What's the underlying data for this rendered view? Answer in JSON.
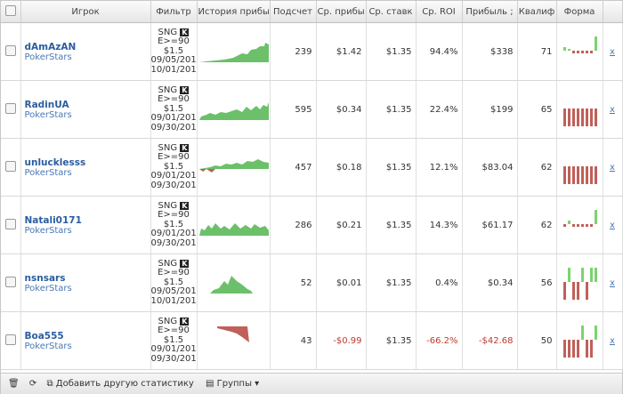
{
  "header": {
    "columns": [
      "Игрок",
      "Фильтр",
      "История прибы",
      "Подсчет",
      "Ср. прибы",
      "Ср. ставк",
      "Ср. ROI",
      "Прибыль ;",
      "Квалиф",
      "Форма"
    ]
  },
  "rows": [
    {
      "player": "dAmAzAN",
      "site": "PokerStars",
      "filter": [
        "SNG",
        "K",
        "E>=90",
        "$1.5",
        "09/05/201",
        "10/01/201"
      ],
      "count": "239",
      "avg_profit": "$1.42",
      "avg_stake": "$1.35",
      "roi": "94.4%",
      "profit": "$338",
      "qual": "71",
      "remove": "x"
    },
    {
      "player": "RadinUA",
      "site": "PokerStars",
      "filter": [
        "SNG",
        "K",
        "E>=90",
        "$1.5",
        "09/01/201",
        "09/30/201"
      ],
      "count": "595",
      "avg_profit": "$0.34",
      "avg_stake": "$1.35",
      "roi": "22.4%",
      "profit": "$199",
      "qual": "65",
      "remove": "x"
    },
    {
      "player": "unlucklesss",
      "site": "PokerStars",
      "filter": [
        "SNG",
        "K",
        "E>=90",
        "$1.5",
        "09/01/201",
        "09/30/201"
      ],
      "count": "457",
      "avg_profit": "$0.18",
      "avg_stake": "$1.35",
      "roi": "12.1%",
      "profit": "$83.04",
      "qual": "62",
      "remove": "x"
    },
    {
      "player": "Natali0171",
      "site": "PokerStars",
      "filter": [
        "SNG",
        "K",
        "E>=90",
        "$1.5",
        "09/01/201",
        "09/30/201"
      ],
      "count": "286",
      "avg_profit": "$0.21",
      "avg_stake": "$1.35",
      "roi": "14.3%",
      "profit": "$61.17",
      "qual": "62",
      "remove": "x"
    },
    {
      "player": "nsnsars",
      "site": "PokerStars",
      "filter": [
        "SNG",
        "K",
        "E>=90",
        "$1.5",
        "09/05/201",
        "10/01/201"
      ],
      "count": "52",
      "avg_profit": "$0.01",
      "avg_stake": "$1.35",
      "roi": "0.4%",
      "profit": "$0.34",
      "qual": "56",
      "remove": "x"
    },
    {
      "player": "Boa555",
      "site": "PokerStars",
      "filter": [
        "SNG",
        "K",
        "E>=90",
        "$1.5",
        "09/01/201",
        "09/30/201"
      ],
      "count": "43",
      "avg_profit": "-$0.99",
      "avg_stake": "$1.35",
      "roi": "-66.2%",
      "profit": "-$42.68",
      "qual": "50",
      "remove": "x"
    }
  ],
  "footer": {
    "add_stat": "Добавить другую статистику",
    "groups": "Группы"
  }
}
